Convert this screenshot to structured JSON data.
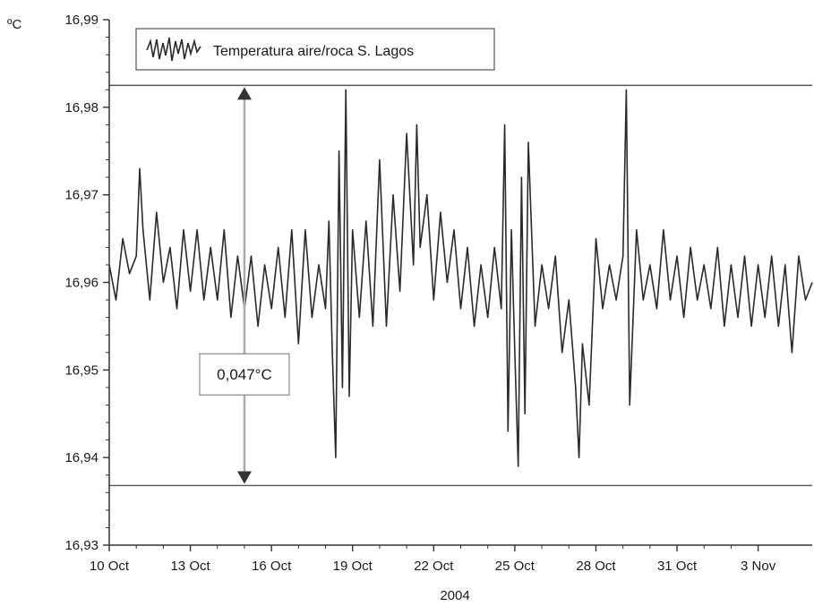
{
  "chart_data": {
    "type": "line",
    "ylabel": "ºC",
    "xlabel": "2004",
    "xlim": [
      "2004-10-10",
      "2004-11-05"
    ],
    "ylim": [
      16.93,
      16.99
    ],
    "x_ticks": [
      {
        "date": "2004-10-10",
        "label": "10 Oct"
      },
      {
        "date": "2004-10-13",
        "label": "13 Oct"
      },
      {
        "date": "2004-10-16",
        "label": "16 Oct"
      },
      {
        "date": "2004-10-19",
        "label": "19 Oct"
      },
      {
        "date": "2004-10-22",
        "label": "22 Oct"
      },
      {
        "date": "2004-10-25",
        "label": "25 Oct"
      },
      {
        "date": "2004-10-28",
        "label": "28 Oct"
      },
      {
        "date": "2004-10-31",
        "label": "31 Oct"
      },
      {
        "date": "2004-11-03",
        "label": "3 Nov"
      }
    ],
    "y_ticks": [
      {
        "value": 16.93,
        "label": "16,93"
      },
      {
        "value": 16.94,
        "label": "16,94"
      },
      {
        "value": 16.95,
        "label": "16,95"
      },
      {
        "value": 16.96,
        "label": "16,96"
      },
      {
        "value": 16.97,
        "label": "16,97"
      },
      {
        "value": 16.98,
        "label": "16,98"
      },
      {
        "value": 16.99,
        "label": "16,99"
      }
    ],
    "legend": {
      "placement": "top-left",
      "entries": [
        "Temperatura aire/roca S. Lagos"
      ]
    },
    "series": [
      {
        "name": "Temperatura aire/roca S. Lagos",
        "color": "#2a2a2a",
        "points": [
          [
            "2004-10-10T00:00",
            16.962
          ],
          [
            "2004-10-10T06:00",
            16.958
          ],
          [
            "2004-10-10T12:00",
            16.965
          ],
          [
            "2004-10-10T18:00",
            16.961
          ],
          [
            "2004-10-11T00:00",
            16.963
          ],
          [
            "2004-10-11T03:00",
            16.973
          ],
          [
            "2004-10-11T06:00",
            16.966
          ],
          [
            "2004-10-11T12:00",
            16.958
          ],
          [
            "2004-10-11T18:00",
            16.968
          ],
          [
            "2004-10-12T00:00",
            16.96
          ],
          [
            "2004-10-12T06:00",
            16.964
          ],
          [
            "2004-10-12T12:00",
            16.957
          ],
          [
            "2004-10-12T18:00",
            16.966
          ],
          [
            "2004-10-13T00:00",
            16.959
          ],
          [
            "2004-10-13T06:00",
            16.966
          ],
          [
            "2004-10-13T12:00",
            16.958
          ],
          [
            "2004-10-13T18:00",
            16.964
          ],
          [
            "2004-10-14T00:00",
            16.958
          ],
          [
            "2004-10-14T06:00",
            16.966
          ],
          [
            "2004-10-14T12:00",
            16.956
          ],
          [
            "2004-10-14T18:00",
            16.963
          ],
          [
            "2004-10-15T00:00",
            16.957
          ],
          [
            "2004-10-15T06:00",
            16.963
          ],
          [
            "2004-10-15T12:00",
            16.955
          ],
          [
            "2004-10-15T18:00",
            16.962
          ],
          [
            "2004-10-16T00:00",
            16.957
          ],
          [
            "2004-10-16T06:00",
            16.964
          ],
          [
            "2004-10-16T12:00",
            16.956
          ],
          [
            "2004-10-16T18:00",
            16.966
          ],
          [
            "2004-10-17T00:00",
            16.953
          ],
          [
            "2004-10-17T06:00",
            16.966
          ],
          [
            "2004-10-17T12:00",
            16.956
          ],
          [
            "2004-10-17T18:00",
            16.962
          ],
          [
            "2004-10-18T00:00",
            16.957
          ],
          [
            "2004-10-18T03:00",
            16.967
          ],
          [
            "2004-10-18T06:00",
            16.952
          ],
          [
            "2004-10-18T09:00",
            16.94
          ],
          [
            "2004-10-18T12:00",
            16.975
          ],
          [
            "2004-10-18T15:00",
            16.948
          ],
          [
            "2004-10-18T18:00",
            16.982
          ],
          [
            "2004-10-18T21:00",
            16.947
          ],
          [
            "2004-10-19T00:00",
            16.966
          ],
          [
            "2004-10-19T06:00",
            16.956
          ],
          [
            "2004-10-19T12:00",
            16.967
          ],
          [
            "2004-10-19T18:00",
            16.955
          ],
          [
            "2004-10-20T00:00",
            16.974
          ],
          [
            "2004-10-20T06:00",
            16.955
          ],
          [
            "2004-10-20T12:00",
            16.97
          ],
          [
            "2004-10-20T18:00",
            16.959
          ],
          [
            "2004-10-21T00:00",
            16.977
          ],
          [
            "2004-10-21T06:00",
            16.962
          ],
          [
            "2004-10-21T09:00",
            16.978
          ],
          [
            "2004-10-21T12:00",
            16.964
          ],
          [
            "2004-10-21T18:00",
            16.97
          ],
          [
            "2004-10-22T00:00",
            16.958
          ],
          [
            "2004-10-22T06:00",
            16.968
          ],
          [
            "2004-10-22T12:00",
            16.96
          ],
          [
            "2004-10-22T18:00",
            16.966
          ],
          [
            "2004-10-23T00:00",
            16.957
          ],
          [
            "2004-10-23T06:00",
            16.964
          ],
          [
            "2004-10-23T12:00",
            16.955
          ],
          [
            "2004-10-23T18:00",
            16.962
          ],
          [
            "2004-10-24T00:00",
            16.956
          ],
          [
            "2004-10-24T06:00",
            16.964
          ],
          [
            "2004-10-24T12:00",
            16.957
          ],
          [
            "2004-10-24T15:00",
            16.978
          ],
          [
            "2004-10-24T18:00",
            16.943
          ],
          [
            "2004-10-24T21:00",
            16.966
          ],
          [
            "2004-10-25T00:00",
            16.952
          ],
          [
            "2004-10-25T03:00",
            16.939
          ],
          [
            "2004-10-25T06:00",
            16.972
          ],
          [
            "2004-10-25T09:00",
            16.945
          ],
          [
            "2004-10-25T12:00",
            16.976
          ],
          [
            "2004-10-25T18:00",
            16.955
          ],
          [
            "2004-10-26T00:00",
            16.962
          ],
          [
            "2004-10-26T06:00",
            16.957
          ],
          [
            "2004-10-26T12:00",
            16.963
          ],
          [
            "2004-10-26T18:00",
            16.952
          ],
          [
            "2004-10-27T00:00",
            16.958
          ],
          [
            "2004-10-27T06:00",
            16.948
          ],
          [
            "2004-10-27T09:00",
            16.94
          ],
          [
            "2004-10-27T12:00",
            16.953
          ],
          [
            "2004-10-27T18:00",
            16.946
          ],
          [
            "2004-10-28T00:00",
            16.965
          ],
          [
            "2004-10-28T06:00",
            16.957
          ],
          [
            "2004-10-28T12:00",
            16.962
          ],
          [
            "2004-10-28T18:00",
            16.958
          ],
          [
            "2004-10-29T00:00",
            16.963
          ],
          [
            "2004-10-29T03:00",
            16.982
          ],
          [
            "2004-10-29T06:00",
            16.946
          ],
          [
            "2004-10-29T12:00",
            16.966
          ],
          [
            "2004-10-29T18:00",
            16.958
          ],
          [
            "2004-10-30T00:00",
            16.962
          ],
          [
            "2004-10-30T06:00",
            16.957
          ],
          [
            "2004-10-30T12:00",
            16.966
          ],
          [
            "2004-10-30T18:00",
            16.958
          ],
          [
            "2004-10-31T00:00",
            16.963
          ],
          [
            "2004-10-31T06:00",
            16.956
          ],
          [
            "2004-10-31T12:00",
            16.964
          ],
          [
            "2004-10-31T18:00",
            16.958
          ],
          [
            "2004-11-01T00:00",
            16.962
          ],
          [
            "2004-11-01T06:00",
            16.957
          ],
          [
            "2004-11-01T12:00",
            16.964
          ],
          [
            "2004-11-01T18:00",
            16.955
          ],
          [
            "2004-11-02T00:00",
            16.962
          ],
          [
            "2004-11-02T06:00",
            16.956
          ],
          [
            "2004-11-02T12:00",
            16.963
          ],
          [
            "2004-11-02T18:00",
            16.955
          ],
          [
            "2004-11-03T00:00",
            16.962
          ],
          [
            "2004-11-03T06:00",
            16.956
          ],
          [
            "2004-11-03T12:00",
            16.963
          ],
          [
            "2004-11-03T18:00",
            16.955
          ],
          [
            "2004-11-04T00:00",
            16.962
          ],
          [
            "2004-11-04T06:00",
            16.952
          ],
          [
            "2004-11-04T12:00",
            16.963
          ],
          [
            "2004-11-04T18:00",
            16.958
          ],
          [
            "2004-11-05T00:00",
            16.96
          ]
        ]
      }
    ],
    "reference_lines": {
      "y_values": [
        16.9825,
        16.9368
      ]
    },
    "annotation": {
      "label": "0,047°C",
      "x": "2004-10-15",
      "y_from": 16.9368,
      "y_to": 16.9825,
      "label_y": 16.9495
    },
    "grid": false
  }
}
